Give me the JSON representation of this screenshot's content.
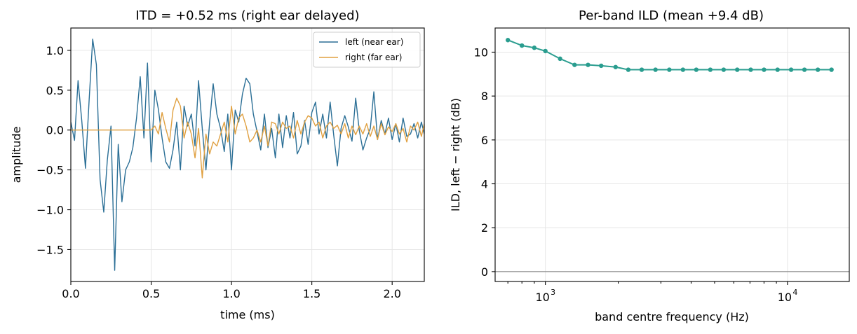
{
  "chart_data": [
    {
      "type": "line",
      "title": "ITD = +0.52 ms  (right ear delayed)",
      "xlabel": "time (ms)",
      "ylabel": "amplitude",
      "xlim": [
        0.0,
        2.2
      ],
      "ylim": [
        -1.9,
        1.28
      ],
      "xticks": [
        0.0,
        0.5,
        1.0,
        1.5,
        2.0
      ],
      "xtick_labels": [
        "0.0",
        "0.5",
        "1.0",
        "1.5",
        "2.0"
      ],
      "yticks": [
        -1.5,
        -1.0,
        -0.5,
        0.0,
        0.5,
        1.0
      ],
      "ytick_labels": [
        "−1.5",
        "−1.0",
        "−0.5",
        "0.0",
        "0.5",
        "1.0"
      ],
      "grid": true,
      "legend": "top-right",
      "series": [
        {
          "name": "left (near ear)",
          "color": "#2b6f96",
          "x": [
            0.0,
            0.023,
            0.045,
            0.068,
            0.091,
            0.114,
            0.136,
            0.159,
            0.182,
            0.205,
            0.227,
            0.25,
            0.273,
            0.295,
            0.318,
            0.341,
            0.364,
            0.386,
            0.409,
            0.432,
            0.455,
            0.477,
            0.5,
            0.523,
            0.545,
            0.568,
            0.591,
            0.614,
            0.636,
            0.659,
            0.682,
            0.705,
            0.727,
            0.75,
            0.773,
            0.795,
            0.818,
            0.841,
            0.864,
            0.886,
            0.909,
            0.932,
            0.955,
            0.977,
            1.0,
            1.023,
            1.045,
            1.068,
            1.091,
            1.114,
            1.136,
            1.159,
            1.182,
            1.205,
            1.227,
            1.25,
            1.273,
            1.295,
            1.318,
            1.341,
            1.364,
            1.386,
            1.409,
            1.432,
            1.455,
            1.477,
            1.5,
            1.523,
            1.545,
            1.568,
            1.591,
            1.614,
            1.636,
            1.659,
            1.682,
            1.705,
            1.727,
            1.75,
            1.773,
            1.795,
            1.818,
            1.841,
            1.864,
            1.886,
            1.909,
            1.932,
            1.955,
            1.977,
            2.0,
            2.023,
            2.045,
            2.068,
            2.091,
            2.114,
            2.136,
            2.159,
            2.182,
            2.2
          ],
          "y": [
            0.1,
            -0.13,
            0.62,
            0.12,
            -0.48,
            0.38,
            1.14,
            0.82,
            -0.62,
            -1.03,
            -0.38,
            0.05,
            -1.76,
            -0.18,
            -0.9,
            -0.5,
            -0.4,
            -0.22,
            0.15,
            0.67,
            -0.1,
            0.84,
            -0.4,
            0.5,
            0.26,
            -0.1,
            -0.4,
            -0.48,
            -0.25,
            0.1,
            -0.5,
            0.3,
            0.05,
            0.2,
            -0.2,
            0.62,
            0.02,
            -0.5,
            0.1,
            0.58,
            0.2,
            0.02,
            -0.27,
            0.2,
            -0.5,
            0.25,
            0.1,
            0.45,
            0.65,
            0.58,
            0.2,
            -0.02,
            -0.25,
            0.2,
            -0.22,
            0.02,
            -0.35,
            0.2,
            -0.22,
            0.18,
            -0.1,
            0.22,
            -0.3,
            -0.2,
            0.12,
            -0.18,
            0.22,
            0.35,
            -0.05,
            0.2,
            -0.1,
            0.35,
            -0.06,
            -0.45,
            0.02,
            0.18,
            0.04,
            -0.14,
            0.4,
            0.0,
            -0.25,
            -0.1,
            0.02,
            0.48,
            -0.12,
            0.12,
            -0.05,
            0.15,
            -0.12,
            0.08,
            -0.15,
            0.15,
            -0.08,
            -0.05,
            0.08,
            -0.1,
            0.1,
            -0.05
          ]
        },
        {
          "name": "right (far ear)",
          "color": "#e0a040",
          "x": [
            0.0,
            0.5,
            0.523,
            0.545,
            0.568,
            0.591,
            0.614,
            0.636,
            0.659,
            0.682,
            0.705,
            0.727,
            0.75,
            0.773,
            0.795,
            0.818,
            0.841,
            0.864,
            0.886,
            0.909,
            0.932,
            0.955,
            0.977,
            1.0,
            1.023,
            1.045,
            1.068,
            1.091,
            1.114,
            1.136,
            1.159,
            1.182,
            1.205,
            1.227,
            1.25,
            1.273,
            1.295,
            1.318,
            1.341,
            1.364,
            1.386,
            1.409,
            1.432,
            1.455,
            1.477,
            1.5,
            1.523,
            1.545,
            1.568,
            1.591,
            1.614,
            1.636,
            1.659,
            1.682,
            1.705,
            1.727,
            1.75,
            1.773,
            1.795,
            1.818,
            1.841,
            1.864,
            1.886,
            1.909,
            1.932,
            1.955,
            1.977,
            2.0,
            2.023,
            2.045,
            2.068,
            2.091,
            2.114,
            2.136,
            2.159,
            2.182,
            2.2
          ],
          "y": [
            0.0,
            0.0,
            0.05,
            -0.05,
            0.22,
            0.02,
            -0.15,
            0.25,
            0.4,
            0.3,
            -0.1,
            0.1,
            -0.05,
            -0.35,
            0.02,
            -0.6,
            -0.05,
            -0.3,
            -0.15,
            -0.2,
            -0.05,
            0.1,
            -0.15,
            0.3,
            -0.05,
            0.15,
            0.2,
            0.05,
            -0.15,
            -0.1,
            0.0,
            -0.15,
            0.05,
            -0.2,
            0.1,
            0.08,
            -0.05,
            0.1,
            0.02,
            0.05,
            -0.1,
            0.12,
            -0.05,
            0.1,
            0.18,
            0.15,
            0.05,
            0.1,
            -0.1,
            0.05,
            0.1,
            0.02,
            0.06,
            -0.05,
            0.08,
            -0.1,
            0.05,
            -0.06,
            0.05,
            -0.05,
            0.08,
            -0.08,
            0.05,
            -0.12,
            0.08,
            -0.06,
            0.04,
            -0.02,
            0.08,
            -0.05,
            0.02,
            -0.15,
            0.05,
            0.0,
            0.1,
            -0.08,
            0.08
          ]
        }
      ]
    },
    {
      "type": "line",
      "title": "Per-band ILD  (mean +9.4 dB)",
      "xlabel": "band centre frequency (Hz)",
      "ylabel": "ILD, left − right (dB)",
      "xscale": "log",
      "xlim": [
        620,
        18000
      ],
      "ylim": [
        -0.45,
        11.1
      ],
      "xticks": [
        1000,
        10000
      ],
      "xtick_labels": [
        {
          "base": "10",
          "exp": "3"
        },
        {
          "base": "10",
          "exp": "4"
        }
      ],
      "yticks": [
        0,
        2,
        4,
        6,
        8,
        10
      ],
      "ytick_labels": [
        "0",
        "2",
        "4",
        "6",
        "8",
        "10"
      ],
      "grid": true,
      "reference_line": {
        "y": 0,
        "color": "#8c8c8c"
      },
      "series": [
        {
          "color": "#2a9d8f",
          "x": [
            700,
            800,
            900,
            1000,
            1150,
            1320,
            1500,
            1700,
            1950,
            2200,
            2500,
            2850,
            3250,
            3700,
            4200,
            4800,
            5450,
            6200,
            7050,
            8000,
            9100,
            10350,
            11750,
            13350,
            15200
          ],
          "y": [
            10.55,
            10.3,
            10.2,
            10.05,
            9.7,
            9.42,
            9.42,
            9.38,
            9.32,
            9.2,
            9.2,
            9.2,
            9.2,
            9.2,
            9.2,
            9.2,
            9.2,
            9.2,
            9.2,
            9.2,
            9.2,
            9.2,
            9.2,
            9.2,
            9.2
          ]
        }
      ]
    }
  ]
}
